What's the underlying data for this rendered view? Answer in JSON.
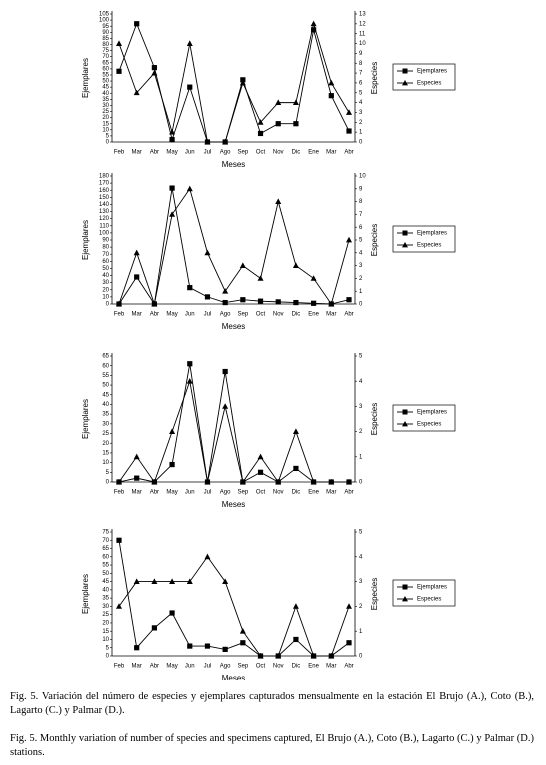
{
  "chart_data": [
    {
      "type": "line",
      "xlabel": "Meses",
      "ylabel": "Ejemplares",
      "y2label": "Especies",
      "legend": "right",
      "categories": [
        "Feb",
        "Mar",
        "Abr",
        "May",
        "Jun",
        "Jul",
        "Ago",
        "Sep",
        "Oct",
        "Nov",
        "Dic",
        "Ene",
        "Mar",
        "Abr"
      ],
      "series": [
        {
          "name": "Ejemplares",
          "color": "#000000",
          "marker": "square",
          "values": [
            58,
            97,
            61,
            2,
            45,
            0,
            0,
            51,
            7,
            15,
            15,
            92,
            38,
            9
          ]
        },
        {
          "name": "Especies",
          "color": "#000000",
          "marker": "triangle",
          "axis": "y2",
          "values": [
            10,
            5,
            7,
            1,
            10,
            0,
            0,
            6,
            2,
            4,
            4,
            12,
            6,
            3
          ]
        }
      ],
      "ylim": [
        0,
        105
      ],
      "yticks": [
        0,
        5,
        10,
        15,
        20,
        25,
        30,
        35,
        40,
        45,
        50,
        55,
        60,
        65,
        70,
        75,
        80,
        85,
        90,
        95,
        100,
        105
      ],
      "y2lim": [
        0,
        13
      ],
      "y2ticks": [
        0,
        1,
        2,
        3,
        4,
        5,
        6,
        7,
        8,
        9,
        10,
        11,
        12,
        13
      ]
    },
    {
      "type": "line",
      "xlabel": "Meses",
      "ylabel": "Ejemplares",
      "y2label": "Especies",
      "legend": "right",
      "categories": [
        "Feb",
        "Mar",
        "Abr",
        "May",
        "Jun",
        "Jul",
        "Ago",
        "Sep",
        "Oct",
        "Nov",
        "Dic",
        "Ene",
        "Mar",
        "Abr"
      ],
      "series": [
        {
          "name": "Ejemplares",
          "color": "#000000",
          "marker": "square",
          "values": [
            0,
            38,
            0,
            163,
            23,
            10,
            2,
            6,
            4,
            3,
            2,
            1,
            0,
            6
          ]
        },
        {
          "name": "Especies",
          "color": "#000000",
          "marker": "triangle",
          "axis": "y2",
          "values": [
            0,
            4,
            0,
            7,
            9,
            4,
            1,
            3,
            2,
            8,
            3,
            2,
            0,
            5
          ]
        }
      ],
      "ylim": [
        0,
        180
      ],
      "yticks": [
        0,
        10,
        20,
        30,
        40,
        50,
        60,
        70,
        80,
        90,
        100,
        110,
        120,
        130,
        140,
        150,
        160,
        170,
        180
      ],
      "y2lim": [
        0,
        10
      ],
      "y2ticks": [
        0,
        1,
        2,
        3,
        4,
        5,
        6,
        7,
        8,
        9,
        10
      ]
    },
    {
      "type": "line",
      "xlabel": "Meses",
      "ylabel": "Ejemplares",
      "y2label": "Especies",
      "legend": "right",
      "categories": [
        "Feb",
        "Mar",
        "Abr",
        "May",
        "Jun",
        "Jul",
        "Ago",
        "Sep",
        "Oct",
        "Nov",
        "Dic",
        "Ene",
        "Mar",
        "Abr"
      ],
      "series": [
        {
          "name": "Ejemplares",
          "color": "#000000",
          "marker": "square",
          "values": [
            0,
            2,
            0,
            9,
            61,
            0,
            57,
            0,
            5,
            0,
            7,
            0,
            0,
            0
          ]
        },
        {
          "name": "Especies",
          "color": "#000000",
          "marker": "triangle",
          "axis": "y2",
          "values": [
            0,
            1,
            0,
            2,
            4,
            0,
            3,
            0,
            1,
            0,
            2,
            0,
            0,
            0
          ]
        }
      ],
      "ylim": [
        0,
        65
      ],
      "yticks": [
        0,
        5,
        10,
        15,
        20,
        25,
        30,
        35,
        40,
        45,
        50,
        55,
        60,
        65
      ],
      "y2lim": [
        0,
        5
      ],
      "y2ticks": [
        0,
        1,
        2,
        3,
        4,
        5
      ]
    },
    {
      "type": "line",
      "xlabel": "Meses",
      "ylabel": "Ejemplares",
      "y2label": "Especies",
      "legend": "right",
      "categories": [
        "Feb",
        "Mar",
        "Abr",
        "May",
        "Jun",
        "Jul",
        "Ago",
        "Sep",
        "Oct",
        "Nov",
        "Dic",
        "Ene",
        "Mar",
        "Abr"
      ],
      "series": [
        {
          "name": "Ejemplares",
          "color": "#000000",
          "marker": "square",
          "values": [
            70,
            5,
            17,
            26,
            6,
            6,
            4,
            8,
            0,
            0,
            10,
            0,
            0,
            8
          ]
        },
        {
          "name": "Especies",
          "color": "#000000",
          "marker": "triangle",
          "axis": "y2",
          "values": [
            2,
            3,
            3,
            3,
            3,
            4,
            3,
            1,
            0,
            0,
            2,
            0,
            0,
            2
          ]
        }
      ],
      "ylim": [
        0,
        75
      ],
      "yticks": [
        0,
        5,
        10,
        15,
        20,
        25,
        30,
        35,
        40,
        45,
        50,
        55,
        60,
        65,
        70,
        75
      ],
      "y2lim": [
        0,
        5
      ],
      "y2ticks": [
        0,
        1,
        2,
        3,
        4,
        5
      ]
    }
  ],
  "caption": [
    "Fig. 5. Variación del número de especies y ejemplares capturados mensualmente en la estación El Brujo (A.), Coto (B.), Lagarto (C.) y Palmar (D.).",
    "Fig. 5.  Monthly variation of number of species and specimens captured, El Brujo (A.), Coto (B.), Lagarto (C.) y Palmar (D.) stations."
  ]
}
